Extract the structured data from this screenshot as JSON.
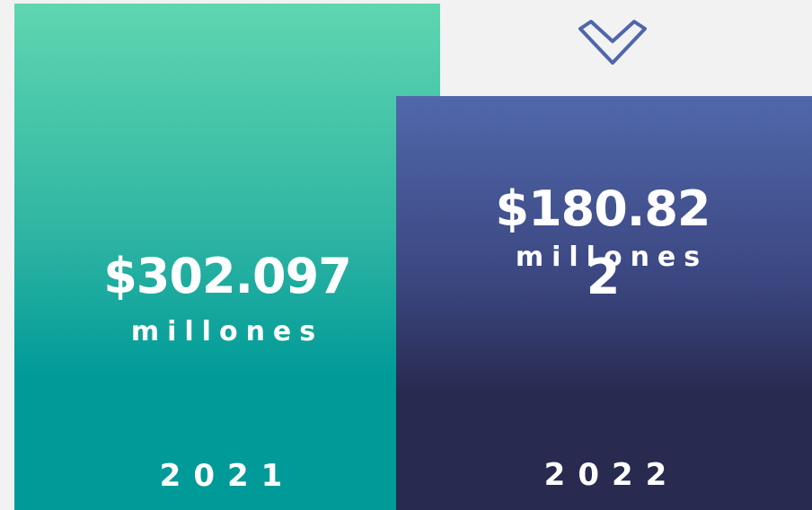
{
  "panels": [
    {
      "amount": "$302.097",
      "unit": "millones",
      "year": "2021"
    },
    {
      "amount": "$180.822",
      "unit": "millones",
      "year": "2022"
    }
  ]
}
